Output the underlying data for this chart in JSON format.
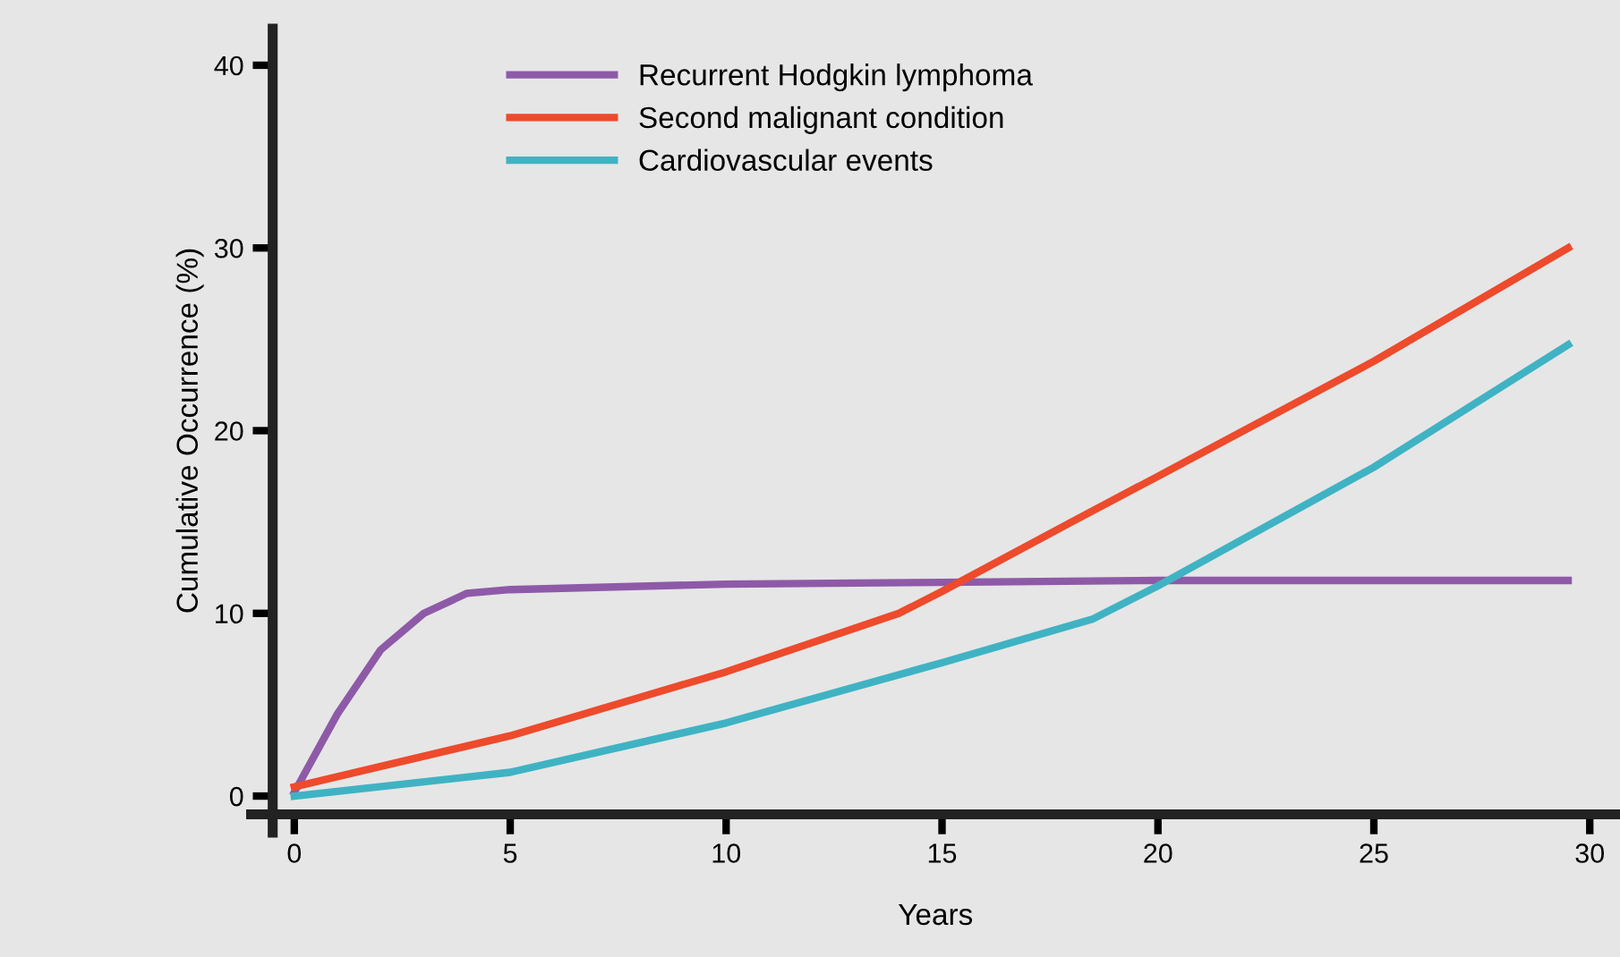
{
  "chart_data": {
    "type": "line",
    "xlabel": "Years",
    "ylabel": "Cumulative Occurrence (%)",
    "xlim": [
      -1,
      30.7
    ],
    "ylim": [
      -2,
      42
    ],
    "xticks": [
      0,
      5,
      10,
      15,
      20,
      25,
      30
    ],
    "yticks": [
      0,
      10,
      20,
      30,
      40
    ],
    "grid": false,
    "legend": "top",
    "marker": "none",
    "line_style": "solid",
    "series": [
      {
        "name": "Recurrent Hodgkin lymphoma",
        "color": "#8e5aa8",
        "x": [
          0,
          1,
          2,
          3,
          4,
          5,
          10,
          15,
          20,
          25,
          29.5
        ],
        "values": [
          0.2,
          4.5,
          8,
          10,
          11.1,
          11.3,
          11.6,
          11.7,
          11.8,
          11.8,
          11.8
        ]
      },
      {
        "name": "Second malignant condition",
        "color": "#ee4a2c",
        "x": [
          0,
          5,
          10,
          14,
          15,
          18,
          20,
          25,
          29.5
        ],
        "values": [
          0.5,
          3.3,
          6.8,
          10,
          11.2,
          15,
          17.5,
          23.8,
          30
        ]
      },
      {
        "name": "Cardiovascular events",
        "color": "#3fb3c3",
        "x": [
          0,
          5,
          10,
          15,
          18.5,
          20,
          25,
          29.5
        ],
        "values": [
          0,
          1.3,
          4,
          7.3,
          9.7,
          11.5,
          18,
          24.7
        ]
      }
    ]
  }
}
